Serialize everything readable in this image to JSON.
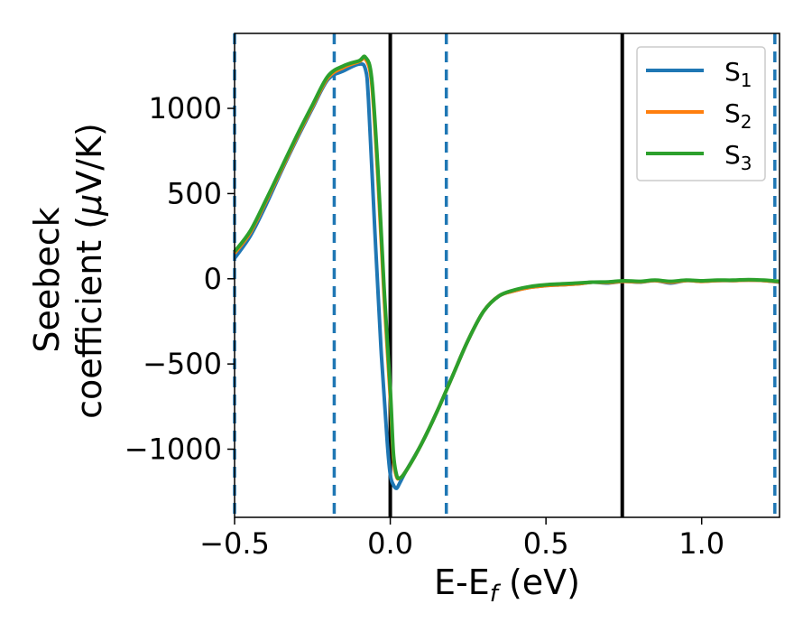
{
  "chart_data": {
    "type": "line",
    "xlabel_main": "E-E",
    "xlabel_sub": "f",
    "xlabel_unit": " (eV)",
    "ylabel_line1": "Seebeck",
    "ylabel_line2_pre": "coefficient  (",
    "ylabel_mu": "μ",
    "ylabel_line2_post": "V/K)",
    "xlim": [
      -0.5,
      1.25
    ],
    "ylim": [
      -1400,
      1440
    ],
    "xticks": [
      -0.5,
      0.0,
      0.5,
      1.0
    ],
    "xtick_labels": [
      "−0.5",
      "0.0",
      "0.5",
      "1.0"
    ],
    "yticks": [
      1000,
      500,
      0,
      -500,
      -1000
    ],
    "ytick_labels": [
      "1000",
      "500",
      "0",
      "−500",
      "−1000"
    ],
    "vlines_solid": [
      0.0,
      0.745
    ],
    "vlines_dashed": [
      -0.5,
      -0.18,
      0.18,
      1.235
    ],
    "colors": {
      "s1": "#1f77b4",
      "s2": "#ff7f0e",
      "s3": "#2ca02c",
      "solid_line": "#000000",
      "dashed_line": "#1f77b4"
    },
    "legend_position": "top-right",
    "grid": false,
    "series": [
      {
        "name": "S",
        "sub": "1",
        "x": [
          -0.5,
          -0.45,
          -0.4,
          -0.35,
          -0.3,
          -0.25,
          -0.2,
          -0.15,
          -0.1,
          -0.08,
          -0.07,
          -0.05,
          -0.03,
          -0.01,
          0.0,
          0.01,
          0.02,
          0.03,
          0.05,
          0.1,
          0.15,
          0.2,
          0.25,
          0.3,
          0.35,
          0.4,
          0.45,
          0.5,
          0.55,
          0.6,
          0.65,
          0.7,
          0.75,
          0.8,
          0.85,
          0.9,
          0.95,
          1.0,
          1.05,
          1.1,
          1.15,
          1.2,
          1.25
        ],
        "y": [
          120,
          250,
          430,
          630,
          820,
          1000,
          1170,
          1220,
          1260,
          1230,
          1050,
          300,
          -400,
          -950,
          -1150,
          -1210,
          -1230,
          -1200,
          -1130,
          -970,
          -780,
          -570,
          -360,
          -190,
          -100,
          -70,
          -50,
          -40,
          -35,
          -30,
          -20,
          -25,
          -15,
          -20,
          -10,
          -25,
          -10,
          -15,
          -10,
          -10,
          -8,
          -10,
          -20
        ]
      },
      {
        "name": "S",
        "sub": "2",
        "x": [
          -0.5,
          -0.45,
          -0.4,
          -0.35,
          -0.3,
          -0.25,
          -0.2,
          -0.15,
          -0.1,
          -0.08,
          -0.06,
          -0.04,
          -0.02,
          0.0,
          0.01,
          0.02,
          0.03,
          0.05,
          0.1,
          0.15,
          0.2,
          0.25,
          0.3,
          0.35,
          0.4,
          0.45,
          0.5,
          0.55,
          0.6,
          0.65,
          0.7,
          0.75,
          0.8,
          0.85,
          0.9,
          0.95,
          1.0,
          1.05,
          1.1,
          1.15,
          1.2,
          1.25
        ],
        "y": [
          150,
          270,
          450,
          640,
          830,
          1010,
          1180,
          1240,
          1275,
          1290,
          1150,
          600,
          -100,
          -700,
          -1050,
          -1160,
          -1170,
          -1130,
          -970,
          -780,
          -570,
          -360,
          -190,
          -100,
          -70,
          -50,
          -40,
          -35,
          -30,
          -20,
          -22,
          -15,
          -18,
          -10,
          -20,
          -10,
          -15,
          -10,
          -10,
          -8,
          -10,
          -18
        ]
      },
      {
        "name": "S",
        "sub": "3",
        "x": [
          -0.5,
          -0.45,
          -0.4,
          -0.35,
          -0.3,
          -0.25,
          -0.2,
          -0.15,
          -0.1,
          -0.08,
          -0.06,
          -0.04,
          -0.02,
          0.0,
          0.01,
          0.02,
          0.03,
          0.05,
          0.1,
          0.15,
          0.2,
          0.25,
          0.3,
          0.35,
          0.4,
          0.45,
          0.5,
          0.55,
          0.6,
          0.65,
          0.7,
          0.75,
          0.8,
          0.85,
          0.9,
          0.95,
          1.0,
          1.05,
          1.1,
          1.15,
          1.2,
          1.25
        ],
        "y": [
          160,
          280,
          460,
          650,
          840,
          1020,
          1190,
          1250,
          1280,
          1300,
          1180,
          650,
          -50,
          -650,
          -1020,
          -1150,
          -1170,
          -1130,
          -970,
          -780,
          -570,
          -360,
          -190,
          -100,
          -65,
          -45,
          -35,
          -30,
          -25,
          -20,
          -18,
          -12,
          -15,
          -8,
          -15,
          -8,
          -12,
          -8,
          -8,
          -5,
          -8,
          -15
        ]
      }
    ]
  }
}
